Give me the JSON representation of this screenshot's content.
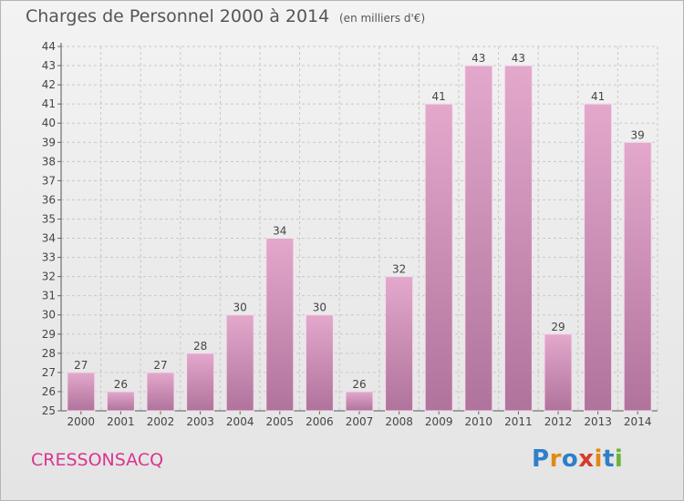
{
  "header": {
    "title": "Charges de Personnel 2000 à 2014",
    "subtitle": "(en milliers d'€)"
  },
  "footer": {
    "location": "CRESSONSACQ",
    "logo": "Proxiti",
    "logo_colors": [
      "#2f7fc9",
      "#e08a12",
      "#2f7fc9",
      "#d83a2a",
      "#e08a12",
      "#2f7fc9",
      "#6bb33a"
    ]
  },
  "chart_data": {
    "type": "bar",
    "title": "Charges de Personnel 2000 à 2014",
    "subtitle": "(en milliers d'€)",
    "categories": [
      "2000",
      "2001",
      "2002",
      "2003",
      "2004",
      "2005",
      "2006",
      "2007",
      "2008",
      "2009",
      "2010",
      "2011",
      "2012",
      "2013",
      "2014"
    ],
    "values": [
      27,
      26,
      27,
      28,
      30,
      34,
      30,
      26,
      32,
      41,
      43,
      43,
      29,
      41,
      39
    ],
    "ylim": [
      25,
      44
    ],
    "yticks": [
      25,
      26,
      27,
      28,
      29,
      30,
      31,
      32,
      33,
      34,
      35,
      36,
      37,
      38,
      39,
      40,
      41,
      42,
      43,
      44
    ],
    "grid": true,
    "bar_color_top": "#e3a8cc",
    "bar_color_bottom": "#b0739c"
  }
}
